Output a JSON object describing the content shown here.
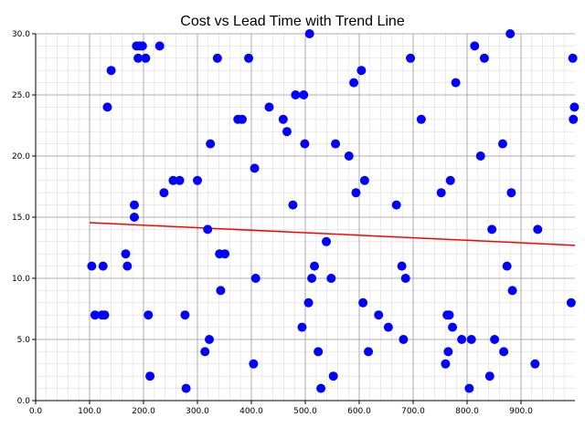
{
  "chart_data": {
    "type": "scatter",
    "title": "Cost vs Lead Time with Trend Line",
    "xlabel": "",
    "ylabel": "",
    "xlim": [
      0,
      1000
    ],
    "ylim": [
      0,
      30
    ],
    "x_ticks": [
      "0.0",
      "100.0",
      "200.0",
      "300.0",
      "400.0",
      "500.0",
      "600.0",
      "700.0",
      "800.0",
      "900.0"
    ],
    "x_tick_values": [
      0,
      100,
      200,
      300,
      400,
      500,
      600,
      700,
      800,
      900
    ],
    "y_ticks": [
      "0.0",
      "5.0",
      "10.0",
      "15.0",
      "20.0",
      "25.0",
      "30.0"
    ],
    "y_tick_values": [
      0,
      5,
      10,
      15,
      20,
      25,
      30
    ],
    "grid": true,
    "minor_grid": true,
    "colors": {
      "points": "#0000ff",
      "trend": "#ff0000",
      "major_grid": "#999999",
      "minor_grid": "#dddddd"
    },
    "points": [
      [
        104,
        11
      ],
      [
        110,
        7
      ],
      [
        123,
        7
      ],
      [
        125,
        11
      ],
      [
        128,
        7
      ],
      [
        133,
        24
      ],
      [
        140,
        27
      ],
      [
        167,
        12
      ],
      [
        170,
        11
      ],
      [
        183,
        16
      ],
      [
        183,
        15
      ],
      [
        187,
        29
      ],
      [
        190,
        28
      ],
      [
        193,
        29
      ],
      [
        198,
        29
      ],
      [
        204,
        28
      ],
      [
        209,
        7
      ],
      [
        212,
        2
      ],
      [
        230,
        29
      ],
      [
        238,
        17
      ],
      [
        255,
        18
      ],
      [
        267,
        18
      ],
      [
        277,
        7
      ],
      [
        279,
        1
      ],
      [
        300,
        18
      ],
      [
        314,
        4
      ],
      [
        319,
        14
      ],
      [
        322,
        5
      ],
      [
        324,
        21
      ],
      [
        337,
        28
      ],
      [
        341,
        12
      ],
      [
        343,
        9
      ],
      [
        351,
        12
      ],
      [
        375,
        23
      ],
      [
        383,
        23
      ],
      [
        395,
        28
      ],
      [
        404,
        3
      ],
      [
        406,
        19
      ],
      [
        408,
        10
      ],
      [
        433,
        24
      ],
      [
        459,
        23
      ],
      [
        466,
        22
      ],
      [
        477,
        16
      ],
      [
        482,
        25
      ],
      [
        494,
        6
      ],
      [
        497,
        25
      ],
      [
        499,
        21
      ],
      [
        506,
        8
      ],
      [
        508,
        30
      ],
      [
        512,
        10
      ],
      [
        517,
        11
      ],
      [
        524,
        4
      ],
      [
        529,
        1
      ],
      [
        539,
        13
      ],
      [
        548,
        10
      ],
      [
        552,
        2
      ],
      [
        556,
        21
      ],
      [
        581,
        20
      ],
      [
        590,
        26
      ],
      [
        594,
        17
      ],
      [
        604,
        27
      ],
      [
        607,
        8
      ],
      [
        610,
        18
      ],
      [
        617,
        4
      ],
      [
        636,
        7
      ],
      [
        654,
        6
      ],
      [
        669,
        16
      ],
      [
        679,
        11
      ],
      [
        682,
        5
      ],
      [
        686,
        10
      ],
      [
        695,
        28
      ],
      [
        715,
        23
      ],
      [
        752,
        17
      ],
      [
        760,
        3
      ],
      [
        763,
        7
      ],
      [
        765,
        4
      ],
      [
        767,
        7
      ],
      [
        769,
        18
      ],
      [
        773,
        6
      ],
      [
        779,
        26
      ],
      [
        790,
        5
      ],
      [
        804,
        1
      ],
      [
        808,
        5
      ],
      [
        814,
        29
      ],
      [
        825,
        20
      ],
      [
        832,
        28
      ],
      [
        842,
        2
      ],
      [
        846,
        14
      ],
      [
        851,
        5
      ],
      [
        866,
        21
      ],
      [
        868,
        4
      ],
      [
        874,
        11
      ],
      [
        880,
        30
      ],
      [
        882,
        17
      ],
      [
        884,
        9
      ],
      [
        926,
        3
      ],
      [
        931,
        14
      ],
      [
        993,
        8
      ],
      [
        996,
        28
      ],
      [
        997,
        23
      ],
      [
        999,
        24
      ]
    ],
    "trend_line": {
      "x": [
        100,
        1000
      ],
      "y": [
        14.55,
        12.7
      ]
    }
  }
}
